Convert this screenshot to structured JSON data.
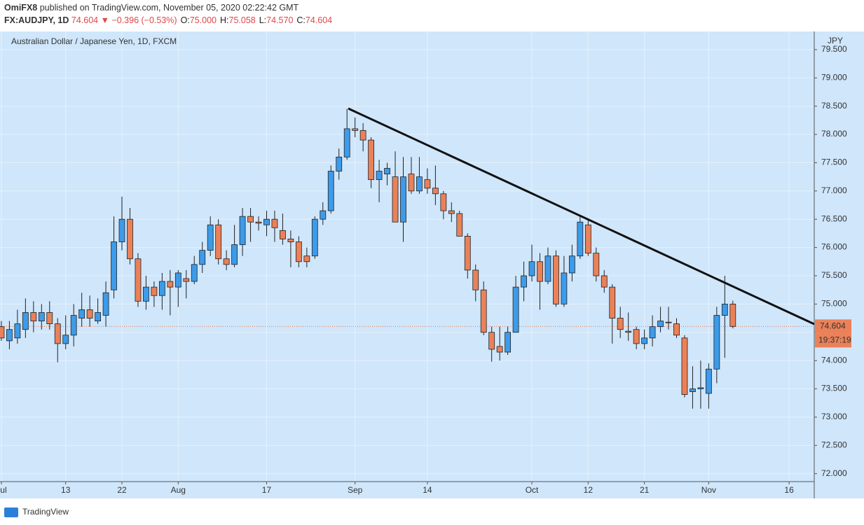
{
  "chart_data": {
    "type": "candlestick",
    "author": "OmiFX8",
    "published": "published on TradingView.com, November 05, 2020 02:22:42 GMT",
    "symbol": "FX:AUDJPY, 1D",
    "last": "74.604",
    "change": "▼ −0.396 (−0.53%)",
    "ohlc_legend": [
      {
        "label": "O:",
        "value": "75.000"
      },
      {
        "label": "H:",
        "value": "75.058"
      },
      {
        "label": "L:",
        "value": "74.570"
      },
      {
        "label": "C:",
        "value": "74.604"
      }
    ],
    "title": "Australian Dollar / Japanese Yen, 1D, FXCM",
    "currency": "JPY",
    "countdown": "19:37:19",
    "footer": "TradingView",
    "up_color": "#3d9be9",
    "down_color": "#ea8159",
    "grid": true,
    "xlim": [
      -0.17,
      101.13
    ],
    "xticks": [
      {
        "value": 0,
        "label": "Jul"
      },
      {
        "value": 8,
        "label": "13"
      },
      {
        "value": 15,
        "label": "22"
      },
      {
        "value": 22,
        "label": "Aug"
      },
      {
        "value": 33,
        "label": "17"
      },
      {
        "value": 44,
        "label": "Sep"
      },
      {
        "value": 53,
        "label": "14"
      },
      {
        "value": 66,
        "label": "Oct"
      },
      {
        "value": 73,
        "label": "12"
      },
      {
        "value": 80,
        "label": "21"
      },
      {
        "value": 88,
        "label": "Nov"
      },
      {
        "value": 98,
        "label": "16"
      }
    ],
    "ylim": [
      71.86,
      79.82
    ],
    "yticks": [
      {
        "value": 72,
        "label": "72.000"
      },
      {
        "value": 72.5,
        "label": "72.500"
      },
      {
        "value": 73,
        "label": "73.000"
      },
      {
        "value": 73.5,
        "label": "73.500"
      },
      {
        "value": 74,
        "label": "74.000"
      },
      {
        "value": 74.5,
        "label": "74.500"
      },
      {
        "value": 75,
        "label": "75.000"
      },
      {
        "value": 75.5,
        "label": "75.500"
      },
      {
        "value": 76,
        "label": "76.000"
      },
      {
        "value": 76.5,
        "label": "76.500"
      },
      {
        "value": 77,
        "label": "77.000"
      },
      {
        "value": 77.5,
        "label": "77.500"
      },
      {
        "value": 78,
        "label": "78.000"
      },
      {
        "value": 78.5,
        "label": "78.500"
      },
      {
        "value": 79,
        "label": "79.000"
      },
      {
        "value": 79.5,
        "label": "79.500"
      }
    ],
    "open": [
      74.6,
      74.35,
      74.4,
      74.55,
      74.85,
      74.7,
      74.85,
      74.65,
      74.3,
      74.45,
      74.75,
      74.9,
      74.7,
      74.8,
      75.25,
      76.1,
      76.5,
      75.8,
      75.05,
      75.3,
      75.15,
      75.4,
      75.3,
      75.45,
      75.4,
      75.7,
      75.95,
      76.4,
      75.8,
      75.7,
      76.05,
      76.55,
      76.45,
      76.4,
      76.5,
      76.3,
      76.15,
      76.1,
      75.85,
      75.85,
      76.5,
      76.65,
      77.35,
      77.6,
      78.1,
      78.07,
      77.9,
      77.2,
      77.3,
      77.25,
      76.45,
      77.3,
      77.0,
      77.2,
      77.05,
      76.95,
      76.65,
      76.6,
      76.2,
      75.6,
      75.25,
      74.5,
      74.25,
      74.15,
      74.5,
      75.3,
      75.5,
      75.75,
      75.4,
      75.85,
      75.0,
      75.55,
      75.85,
      76.4,
      75.9,
      75.5,
      75.3,
      74.75,
      74.52,
      74.55,
      74.3,
      74.4,
      74.6,
      74.68,
      74.65,
      74.4,
      73.45,
      73.5,
      73.42,
      73.85,
      74.8,
      75.0
    ],
    "high": [
      74.7,
      74.7,
      74.9,
      75.1,
      75.05,
      75.0,
      75.05,
      74.75,
      74.8,
      75.0,
      75.2,
      75.15,
      75.1,
      75.4,
      76.55,
      76.9,
      76.7,
      75.9,
      75.5,
      75.4,
      75.55,
      75.6,
      75.6,
      75.6,
      75.85,
      76.1,
      76.55,
      76.5,
      75.95,
      76.4,
      76.7,
      76.7,
      76.55,
      76.65,
      76.65,
      76.6,
      76.3,
      76.2,
      76.0,
      76.55,
      76.8,
      77.45,
      77.75,
      78.45,
      78.3,
      78.2,
      77.95,
      77.55,
      77.5,
      77.7,
      77.6,
      77.6,
      77.6,
      77.4,
      77.45,
      77.0,
      76.8,
      76.65,
      76.25,
      75.7,
      75.4,
      74.6,
      74.6,
      74.6,
      75.5,
      75.75,
      76.05,
      75.9,
      76.0,
      75.95,
      75.85,
      76.05,
      76.55,
      76.5,
      76.0,
      75.6,
      75.35,
      74.95,
      74.85,
      74.6,
      74.55,
      74.8,
      74.95,
      74.95,
      74.75,
      74.45,
      73.9,
      74.0,
      73.95,
      74.95,
      75.5,
      75.058
    ],
    "low": [
      74.35,
      74.2,
      74.3,
      74.4,
      74.5,
      74.55,
      74.55,
      73.97,
      74.2,
      74.25,
      74.6,
      74.6,
      74.65,
      74.6,
      75.1,
      75.95,
      75.7,
      74.95,
      74.9,
      74.95,
      74.9,
      74.8,
      74.95,
      75.1,
      75.35,
      75.55,
      75.85,
      75.7,
      75.6,
      75.65,
      75.85,
      76.1,
      76.3,
      76.2,
      76.1,
      76.05,
      75.65,
      75.65,
      75.65,
      75.8,
      76.4,
      76.6,
      77.2,
      77.55,
      77.95,
      77.7,
      77.05,
      76.8,
      77.1,
      76.45,
      76.1,
      76.95,
      76.95,
      76.95,
      76.75,
      76.5,
      76.45,
      76.2,
      75.45,
      75.05,
      74.45,
      73.98,
      74.0,
      74.1,
      74.5,
      75.05,
      75.4,
      74.9,
      75.35,
      74.95,
      74.95,
      75.4,
      75.8,
      75.85,
      75.4,
      75.2,
      74.3,
      74.4,
      74.35,
      74.2,
      74.2,
      74.25,
      74.5,
      74.55,
      74.4,
      73.35,
      73.15,
      73.15,
      73.15,
      73.6,
      74.05,
      74.57
    ],
    "close": [
      74.4,
      74.55,
      74.65,
      74.85,
      74.7,
      74.85,
      74.65,
      74.3,
      74.45,
      74.8,
      74.9,
      74.75,
      74.85,
      75.2,
      76.1,
      76.5,
      75.8,
      75.05,
      75.3,
      75.15,
      75.4,
      75.3,
      75.55,
      75.4,
      75.7,
      75.95,
      76.4,
      75.8,
      75.7,
      76.05,
      76.55,
      76.45,
      76.43,
      76.5,
      76.35,
      76.15,
      76.1,
      75.75,
      75.75,
      76.5,
      76.65,
      77.35,
      77.6,
      78.1,
      78.07,
      77.9,
      77.2,
      77.35,
      77.4,
      76.45,
      77.25,
      77.0,
      77.25,
      77.05,
      76.95,
      76.65,
      76.6,
      76.2,
      75.6,
      75.25,
      74.5,
      74.2,
      74.15,
      74.5,
      75.3,
      75.5,
      75.75,
      75.4,
      75.85,
      75.0,
      75.55,
      75.85,
      76.45,
      75.9,
      75.5,
      75.3,
      74.75,
      74.55,
      74.5,
      74.3,
      74.4,
      74.6,
      74.7,
      74.67,
      74.45,
      73.4,
      73.5,
      73.52,
      73.85,
      74.8,
      75.0,
      74.604
    ]
  }
}
